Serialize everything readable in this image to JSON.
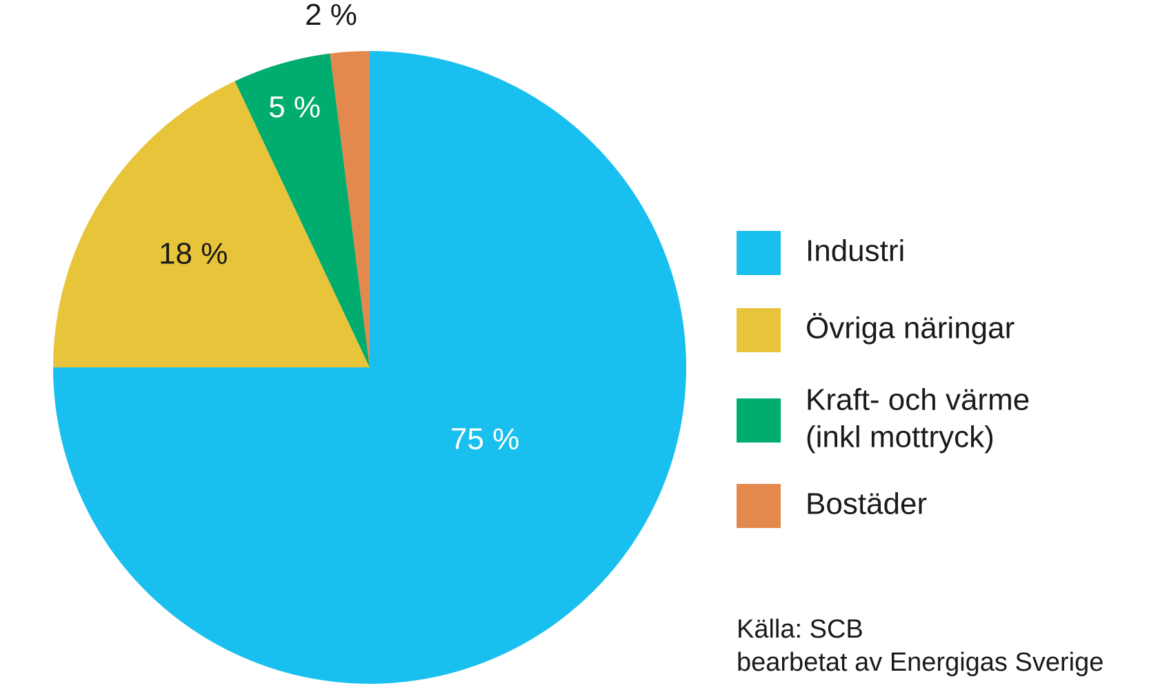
{
  "chart_data": {
    "type": "pie",
    "start": "12 o'clock, clockwise",
    "slices": [
      {
        "name": "Industri",
        "value": 75,
        "label": "75 %",
        "color": "#19BFEE",
        "label_color": "#ffffff"
      },
      {
        "name": "Övriga näringar",
        "value": 18,
        "label": "18 %",
        "color": "#E8C43A",
        "label_color": "#1a1a1a"
      },
      {
        "name": "Kraft- och värme (inkl mottryck)",
        "value": 5,
        "label": "5 %",
        "color": "#00AC6E",
        "label_color": "#ffffff"
      },
      {
        "name": "Bostäder",
        "value": 2,
        "label": "2 %",
        "color": "#E4894D",
        "label_color": "#1a1a1a"
      }
    ],
    "legend": {
      "placement": "right",
      "items": [
        {
          "lines": [
            "Industri"
          ],
          "color": "#19BFEE"
        },
        {
          "lines": [
            "Övriga näringar"
          ],
          "color": "#E8C43A"
        },
        {
          "lines": [
            "Kraft- och värme",
            "(inkl mottryck)"
          ],
          "color": "#00AC6E"
        },
        {
          "lines": [
            "Bostäder"
          ],
          "color": "#E4894D"
        }
      ]
    },
    "source": {
      "line1": "Källa: SCB",
      "line2": "bearbetat av Energigas Sverige"
    }
  }
}
